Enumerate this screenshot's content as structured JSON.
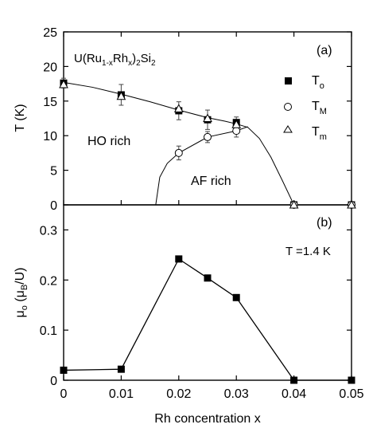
{
  "chart_data": [
    {
      "type": "scatter",
      "panel_label": "(a)",
      "title": "U(Ru1-xRhx)2Si2",
      "title_parts": {
        "base": "U(Ru",
        "sub1": "1-x",
        "mid1": "Rh",
        "sub2": "x",
        "mid2": ")",
        "sub3": "2",
        "mid3": "Si",
        "sub4": "2"
      },
      "ylabel": "T (K)",
      "xlim": [
        0,
        0.05
      ],
      "ylim": [
        0,
        25
      ],
      "yticks": [
        0,
        5,
        10,
        15,
        20,
        25
      ],
      "region_labels": [
        "HO rich",
        "AF rich"
      ],
      "series": [
        {
          "name": "T",
          "name_sub": "o",
          "marker": "filled-square",
          "x": [
            0,
            0.01,
            0.02,
            0.025,
            0.03,
            0.04,
            0.05
          ],
          "y": [
            17.6,
            15.9,
            13.6,
            12.3,
            11.9,
            0,
            0
          ],
          "err": [
            0.7,
            1.5,
            1.3,
            1.4,
            0.8,
            0,
            0
          ]
        },
        {
          "name": "T",
          "name_sub": "M",
          "marker": "open-circle",
          "x": [
            0.02,
            0.025,
            0.03,
            0.04,
            0.05
          ],
          "y": [
            7.5,
            9.8,
            10.7,
            0,
            0
          ],
          "err": [
            1.0,
            0.8,
            0.9,
            0,
            0
          ]
        },
        {
          "name": "T",
          "name_sub": "m",
          "marker": "open-triangle",
          "x": [
            0,
            0.01,
            0.02,
            0.025,
            0.03,
            0.04,
            0.05
          ],
          "y": [
            17.4,
            15.7,
            13.9,
            12.5,
            11.6,
            0,
            0
          ],
          "err": [
            0,
            0,
            0,
            0,
            0,
            0,
            0
          ]
        }
      ],
      "curves": {
        "ho_boundary": {
          "x": [
            0,
            0.005,
            0.01,
            0.015,
            0.02,
            0.025,
            0.028,
            0.03,
            0.032,
            0.034,
            0.036,
            0.038,
            0.04
          ],
          "y": [
            17.7,
            17.0,
            16.0,
            14.9,
            13.7,
            12.6,
            12.1,
            11.7,
            11.2,
            9.6,
            6.9,
            3.5,
            0
          ]
        },
        "af_boundary": {
          "x": [
            0.016,
            0.0167,
            0.018,
            0.02,
            0.025,
            0.03,
            0.032
          ],
          "y": [
            0,
            4.0,
            6.0,
            7.5,
            9.8,
            10.7,
            11.3
          ]
        }
      }
    },
    {
      "type": "line",
      "panel_label": "(b)",
      "annotation": "T =1.4 K",
      "ylabel": "μo (μB/U)",
      "ylabel_parts": {
        "mu": "μ",
        "mu_sub": "o",
        "open": " (μ",
        "unit_sub": "B",
        "close": "/U)"
      },
      "xlabel": "Rh concentration x",
      "xlim": [
        0,
        0.05
      ],
      "ylim": [
        0,
        0.35
      ],
      "yticks": [
        0,
        0.1,
        0.2,
        0.3
      ],
      "xticks": [
        0,
        0.01,
        0.02,
        0.03,
        0.04,
        0.05
      ],
      "series": [
        {
          "name": "",
          "marker": "filled-square",
          "x": [
            0,
            0.01,
            0.02,
            0.025,
            0.03,
            0.04,
            0.05
          ],
          "y": [
            0.02,
            0.022,
            0.242,
            0.204,
            0.165,
            0,
            0
          ]
        }
      ]
    }
  ]
}
